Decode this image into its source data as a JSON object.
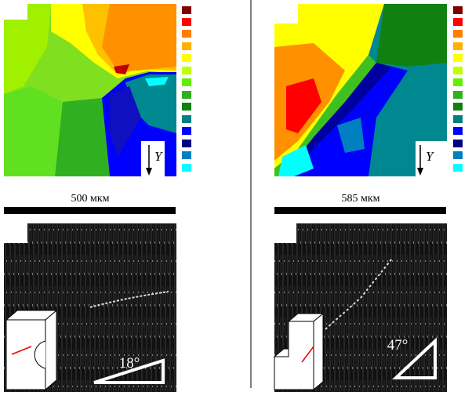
{
  "panels": [
    {
      "axis_label": "Y",
      "scale_label": "500 мкм",
      "angle_label": "18°"
    },
    {
      "axis_label": "Y",
      "scale_label": "585 мкм",
      "angle_label": "47°"
    }
  ]
}
